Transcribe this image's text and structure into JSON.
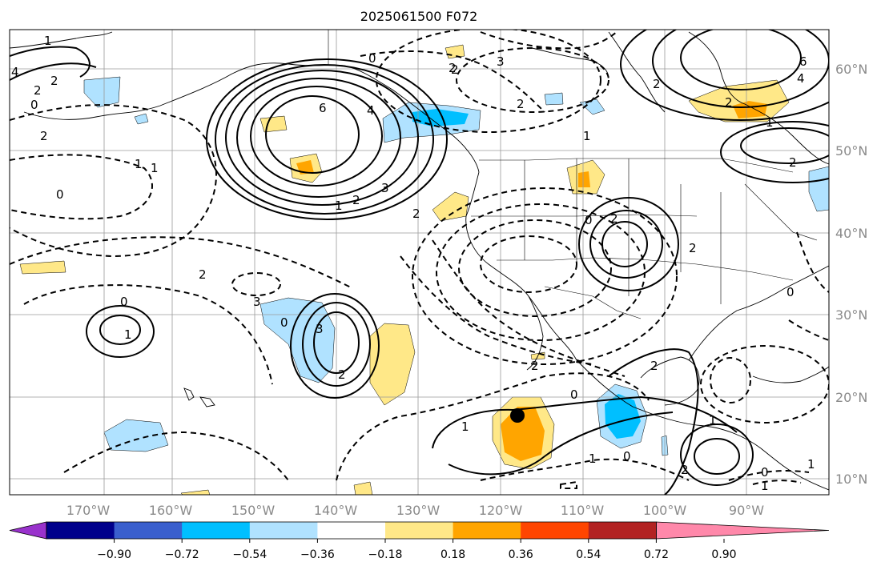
{
  "title": "2025061500 F072",
  "lon_labels": [
    "170°W",
    "160°W",
    "150°W",
    "140°W",
    "130°W",
    "120°W",
    "110°W",
    "100°W",
    "90°W"
  ],
  "lat_labels": [
    "60°N",
    "50°N",
    "40°N",
    "30°N",
    "20°N",
    "10°N"
  ],
  "colorbar": {
    "ticks": [
      "−0.90",
      "−0.72",
      "−0.54",
      "−0.36",
      "−0.18",
      "0.18",
      "0.36",
      "0.54",
      "0.72",
      "0.90"
    ],
    "colors": [
      "#9932cc",
      "#00008b",
      "#3a5fcd",
      "#00bfff",
      "#b0e2ff",
      "#ffffff",
      "#ffe888",
      "#ffa500",
      "#ff4500",
      "#b22222",
      "#ff88aa"
    ]
  },
  "contour_labels": {
    "c1": "2",
    "c2": "4",
    "c3": "0",
    "c4": "6",
    "c5": "4",
    "c6": "3",
    "c7": "2",
    "c8": "0",
    "c9": "2",
    "c10": "2",
    "c11": "2",
    "c12": "1",
    "c13": "1",
    "c14": "0",
    "c15": "3",
    "c16": "2",
    "c17": "2",
    "c18": "3",
    "c19": "0",
    "c20": "3",
    "c21": "2",
    "c22": "0",
    "c23": "1",
    "c24": "2",
    "c25": "0",
    "c26": "1",
    "c27": "1",
    "c28": "0",
    "c29": "1",
    "c30": "1",
    "c31": "0",
    "c32": "2",
    "c33": "0",
    "c34": "2",
    "c35": "4",
    "c36": "2",
    "c37": "6",
    "c38": "1",
    "c39": "2",
    "c40": "2",
    "c41": "1",
    "c42": "2",
    "c43": "1",
    "c44": "1",
    "c45": "0",
    "c46": "2",
    "c47": "1",
    "c48": "2",
    "c49": "2"
  },
  "marker": "storm-center-dot"
}
